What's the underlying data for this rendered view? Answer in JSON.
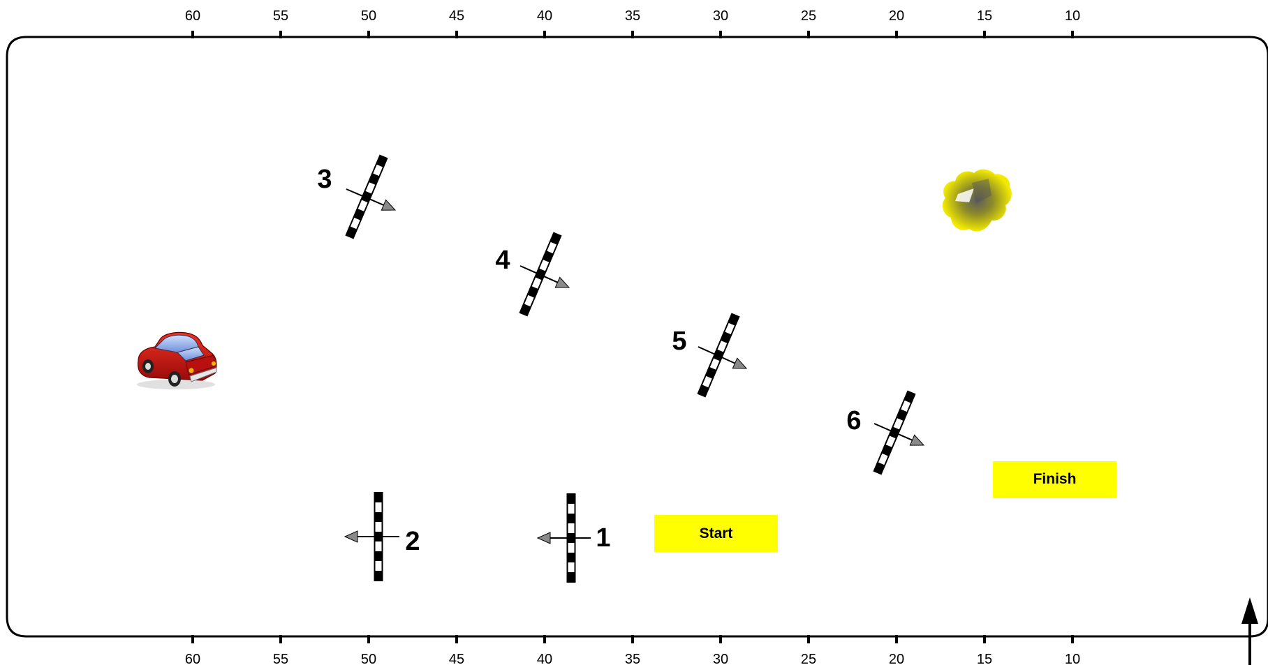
{
  "scale": {
    "top_ticks": [
      "60",
      "55",
      "50",
      "45",
      "40",
      "35",
      "30",
      "25",
      "20",
      "15",
      "10"
    ],
    "bottom_ticks": [
      "60",
      "55",
      "50",
      "45",
      "40",
      "35",
      "30",
      "25",
      "20",
      "15",
      "10"
    ]
  },
  "gates": [
    {
      "label": "1",
      "orientation": "vertical",
      "arrow": "left"
    },
    {
      "label": "2",
      "orientation": "vertical",
      "arrow": "left"
    },
    {
      "label": "3",
      "orientation": "tilted",
      "arrow": "right-down"
    },
    {
      "label": "4",
      "orientation": "tilted",
      "arrow": "right-down"
    },
    {
      "label": "5",
      "orientation": "tilted",
      "arrow": "right-down"
    },
    {
      "label": "6",
      "orientation": "tilted",
      "arrow": "right-down"
    }
  ],
  "markers": {
    "start": "Start",
    "finish": "Finish"
  },
  "icons": {
    "car": "red-car-icon",
    "bush": "yellow-bush-icon",
    "north": "north-arrow-icon"
  },
  "colors": {
    "marker_fill": "#ffff00",
    "car_body": "#cc1111",
    "bush": "#e8e000",
    "arrowhead": "#8a8a8a",
    "gate_dark": "#000000",
    "gate_light": "#ffffff"
  }
}
